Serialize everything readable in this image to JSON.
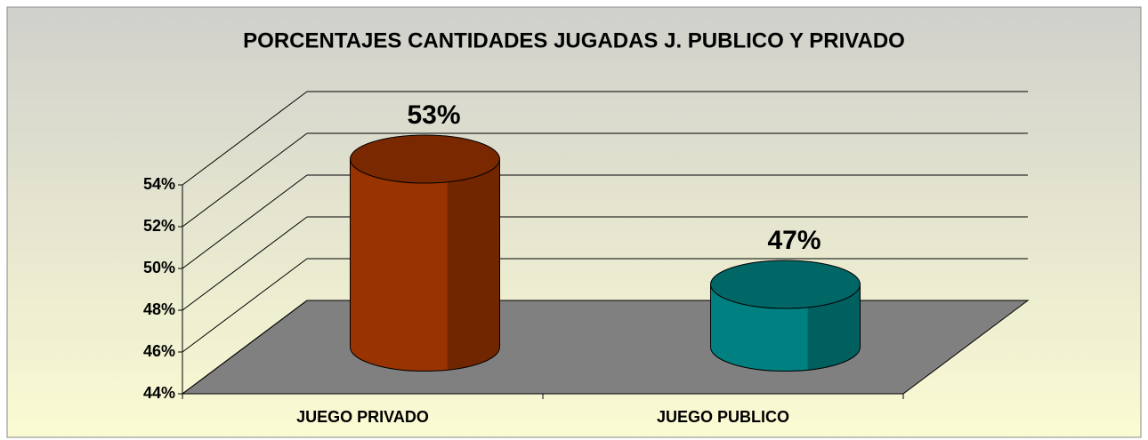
{
  "chart_data": {
    "type": "bar3d",
    "title": "PORCENTAJES CANTIDADES JUGADAS J. PUBLICO Y PRIVADO",
    "categories": [
      "JUEGO PRIVADO",
      "JUEGO PUBLICO"
    ],
    "values": [
      53,
      47
    ],
    "value_labels": [
      "53%",
      "47%"
    ],
    "colors": [
      "#993300",
      "#008080"
    ],
    "ylim": [
      44,
      54
    ],
    "yticks": [
      {
        "value": 44,
        "label": "44%"
      },
      {
        "value": 46,
        "label": "46%"
      },
      {
        "value": 48,
        "label": "48%"
      },
      {
        "value": 50,
        "label": "50%"
      },
      {
        "value": 52,
        "label": "52%"
      },
      {
        "value": 54,
        "label": "54%"
      }
    ],
    "grid": true
  }
}
